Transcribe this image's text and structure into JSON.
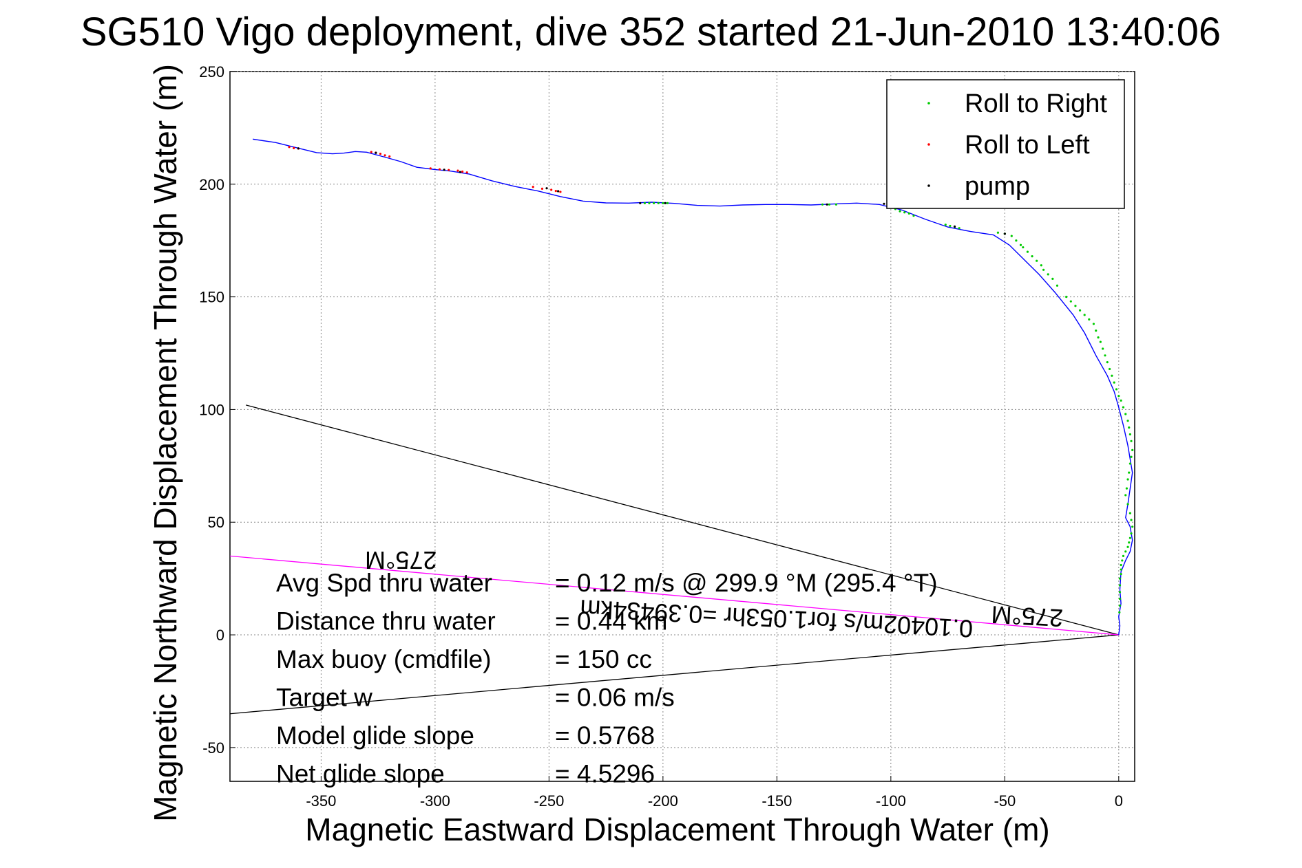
{
  "chart_data": {
    "type": "line",
    "title": "SG510 Vigo deployment, dive 352 started 21-Jun-2010 13:40:06",
    "xlabel": "Magnetic Eastward Displacement Through Water (m)",
    "ylabel": "Magnetic Northward Displacement Through Water (m)",
    "xlim": [
      -390,
      7
    ],
    "ylim": [
      -65,
      250
    ],
    "x_ticks": [
      -350,
      -300,
      -250,
      -200,
      -150,
      -100,
      -50,
      0
    ],
    "y_ticks": [
      -50,
      0,
      50,
      100,
      150,
      200,
      250
    ],
    "grid": true,
    "legend_position": "top-right",
    "legend": [
      {
        "label": "Roll to Right",
        "color": "#00cc00",
        "marker": "dot"
      },
      {
        "label": "Roll to Left",
        "color": "#ff0000",
        "marker": "dot"
      },
      {
        "label": "pump",
        "color": "#000000",
        "marker": "dot"
      }
    ],
    "track": {
      "name": "track",
      "color": "#0000ff",
      "x": [
        -380,
        -370,
        -360,
        -352,
        -345,
        -340,
        -335,
        -330,
        -322,
        -315,
        -308,
        -300,
        -293,
        -285,
        -275,
        -265,
        -255,
        -245,
        -235,
        -225,
        -215,
        -205,
        -195,
        -185,
        -175,
        -165,
        -155,
        -145,
        -135,
        -125,
        -115,
        -105,
        -95,
        -85,
        -75,
        -65,
        -55,
        -48,
        -42,
        -35,
        -28,
        -20,
        -15,
        -10,
        -5,
        -2,
        0,
        2,
        4,
        5,
        6,
        5,
        4,
        3,
        5,
        6,
        5,
        3,
        1,
        0.5,
        1,
        0,
        0.5,
        0
      ],
      "y": [
        220,
        218.5,
        216,
        214,
        213.5,
        213.8,
        214.5,
        214.2,
        212,
        210,
        207.5,
        206.5,
        205.8,
        204.5,
        201.5,
        199,
        197,
        194.5,
        192.5,
        191.7,
        191.6,
        192,
        191.5,
        190.6,
        190.3,
        190.8,
        191,
        191,
        190.8,
        191.2,
        191.6,
        191,
        188.5,
        184.5,
        181,
        179,
        177.5,
        173,
        167,
        160,
        152,
        142,
        134,
        124,
        115,
        108,
        101,
        93,
        84,
        78,
        72,
        65,
        58,
        52,
        48,
        42,
        37,
        33,
        28,
        20,
        14,
        8,
        4,
        0
      ]
    },
    "roll_right_x": [
      -208,
      -206,
      -204,
      -202,
      -200,
      -198,
      -130,
      -127,
      -124,
      -98,
      -96,
      -94,
      -92,
      -90,
      -76,
      -74,
      -72,
      -70,
      -53,
      -50,
      -47,
      -45,
      -43,
      -42,
      -40,
      -38,
      -36,
      -34,
      -33,
      -31,
      -29,
      -27,
      -23,
      -21,
      -19,
      -17,
      -15,
      -13,
      -11,
      -10,
      -9,
      -8,
      -7,
      -6,
      -5,
      -4,
      -3,
      -2,
      -1,
      0,
      1,
      2,
      3,
      4,
      4.5,
      5,
      5.5,
      6,
      5.5,
      5,
      4.5,
      4,
      3.5,
      3,
      4,
      5,
      5.5,
      6,
      5.5,
      5,
      4.5,
      4,
      3,
      2,
      1.5,
      1,
      1,
      1,
      0.5,
      0.5,
      0.5,
      0.5,
      0.5,
      0.3
    ],
    "roll_right_y": [
      191.6,
      191.6,
      191.6,
      191.6,
      191.6,
      191.6,
      191,
      191,
      191,
      189,
      188,
      187.5,
      187,
      186,
      182,
      181.5,
      181,
      180.5,
      178.5,
      178,
      177,
      175,
      173,
      172,
      170,
      168,
      166,
      164,
      162,
      160,
      158,
      155,
      150,
      148,
      146,
      144,
      142,
      140,
      138,
      135,
      132,
      130,
      127,
      124,
      121,
      118,
      115,
      112,
      109,
      106,
      104,
      101,
      98,
      95,
      92,
      89,
      86,
      82,
      79,
      76,
      72,
      69,
      65,
      62,
      58,
      54,
      51,
      48,
      45,
      43,
      41,
      39,
      37,
      35,
      33,
      31,
      29,
      27,
      25,
      22,
      19,
      16,
      13,
      10
    ],
    "roll_left_x": [
      -364,
      -362,
      -360,
      -328,
      -326,
      -324,
      -322,
      -320,
      -302,
      -298,
      -294,
      -290,
      -288,
      -286,
      -257,
      -253,
      -249,
      -247,
      -245
    ],
    "roll_left_y": [
      216.5,
      216,
      215.8,
      214.3,
      214,
      213.5,
      212.8,
      212.3,
      207,
      206.6,
      206.3,
      206,
      205.6,
      205.2,
      198.8,
      198,
      197.5,
      197,
      196.6
    ],
    "pump_x": [
      -360,
      -326,
      -296,
      -289,
      -251,
      -246,
      -210,
      -199,
      -128,
      -103,
      -100,
      -72,
      -50
    ],
    "pump_y": [
      215.9,
      213.9,
      206.4,
      205.4,
      198.2,
      196.9,
      191.6,
      191.6,
      191,
      191.3,
      190.6,
      181.2,
      178
    ],
    "lines": [
      {
        "name": "cone-upper",
        "color": "#000000",
        "x": [
          -383,
          0
        ],
        "y": [
          102,
          0
        ]
      },
      {
        "name": "cone-lower",
        "color": "#000000",
        "x": [
          -390,
          0
        ],
        "y": [
          -35,
          0
        ]
      },
      {
        "name": "current-vector",
        "color": "#ff00ff",
        "x": [
          -390,
          0
        ],
        "y": [
          35,
          0
        ]
      }
    ],
    "annotations": [
      {
        "text": "275°M",
        "x": -315,
        "y": 37,
        "rotation": 180
      },
      {
        "text": "275°M",
        "x": -40,
        "y": 12,
        "rotation": 183
      },
      {
        "text": "0.10402m/s for1.053hr =0.39434km",
        "x": -150,
        "y": 11,
        "rotation": 183
      }
    ],
    "info": [
      {
        "label": "Avg Spd thru water",
        "value": "=  0.12 m/s @ 299.9 °M (295.4 °T)"
      },
      {
        "label": "Distance thru water",
        "value": "=  0.44 km"
      },
      {
        "label": "Max buoy (cmdfile)",
        "value": "= 150 cc"
      },
      {
        "label": "Target w",
        "value": "= 0.06 m/s"
      },
      {
        "label": "Model glide slope",
        "value": "= 0.5768"
      },
      {
        "label": "Net glide slope",
        "value": "= 4.5296"
      }
    ]
  }
}
